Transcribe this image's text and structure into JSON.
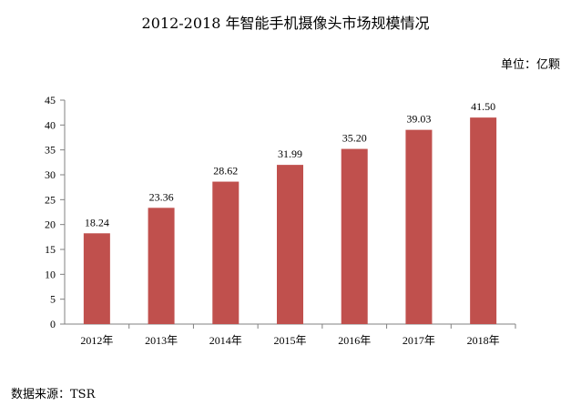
{
  "title": "2012-2018 年智能手机摄像头市场规模情况",
  "unit": "单位：亿颗",
  "source": "数据来源：TSR",
  "chart_data": {
    "type": "bar",
    "title": "2012-2018 年智能手机摄像头市场规模情况",
    "xlabel": "",
    "ylabel": "",
    "categories": [
      "2012年",
      "2013年",
      "2014年",
      "2015年",
      "2016年",
      "2017年",
      "2018年"
    ],
    "values": [
      18.24,
      23.36,
      28.62,
      31.99,
      35.2,
      39.03,
      41.5
    ],
    "data_labels": [
      "18.24",
      "23.36",
      "28.62",
      "31.99",
      "35.20",
      "39.03",
      "41.50"
    ],
    "ylim": [
      0,
      45
    ],
    "yticks": [
      0,
      5,
      10,
      15,
      20,
      25,
      30,
      35,
      40,
      45
    ],
    "grid": false,
    "legend": "none",
    "bar_color": "#C0504D"
  }
}
